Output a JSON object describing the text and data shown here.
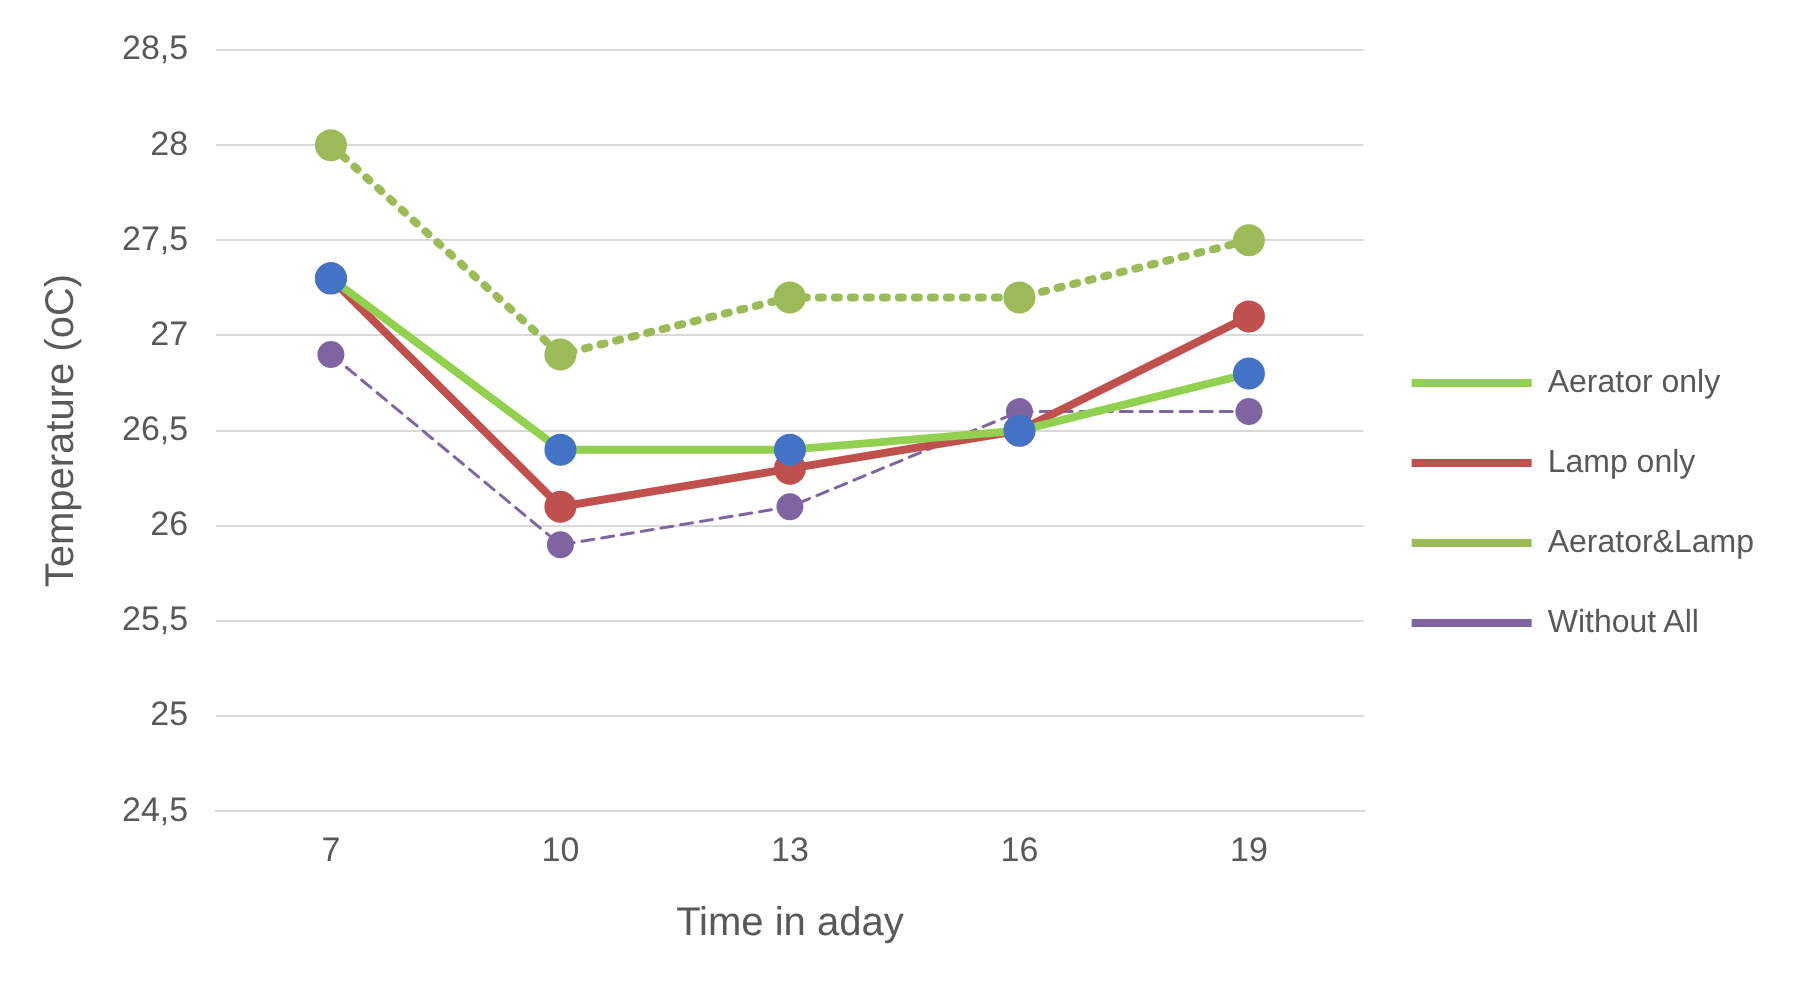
{
  "chart_data": {
    "type": "line",
    "xlabel": "Time in aday",
    "ylabel": "Temperature (oC)",
    "categories": [
      "7",
      "10",
      "13",
      "16",
      "19"
    ],
    "series": [
      {
        "name": "Aerator only",
        "color": "#92d050",
        "colors": [
          "#4472c4",
          "#4472c4",
          "#4472c4",
          "#4472c4",
          "#4472c4"
        ],
        "line_style": "solid",
        "values": [
          27.3,
          26.4,
          26.4,
          26.5,
          26.8
        ]
      },
      {
        "name": "Lamp only",
        "color": "#c0504d",
        "line_style": "solid",
        "values": [
          27.3,
          26.1,
          26.3,
          26.5,
          27.1
        ]
      },
      {
        "name": "Aerator&Lamp",
        "color": "#9bbb59",
        "line_style": "dotted",
        "values": [
          28,
          26.9,
          27.2,
          27.2,
          27.5
        ]
      },
      {
        "name": "Without All",
        "color": "#8064a2",
        "line_style": "dashed",
        "values": [
          26.9,
          25.9,
          26.1,
          26.6,
          26.6
        ]
      }
    ],
    "ylim": [
      24.5,
      28.5
    ],
    "yticks": [
      {
        "value": 24.5,
        "label": "24,5"
      },
      25,
      {
        "value": 25.5,
        "label": "25,5"
      },
      26,
      {
        "value": 26.5,
        "label": "26,5"
      },
      27,
      {
        "value": 27.5,
        "label": "27,5"
      },
      28,
      {
        "value": 28.5,
        "label": "28,5"
      }
    ],
    "grid": "y",
    "legend": "right",
    "marker": "circle"
  }
}
